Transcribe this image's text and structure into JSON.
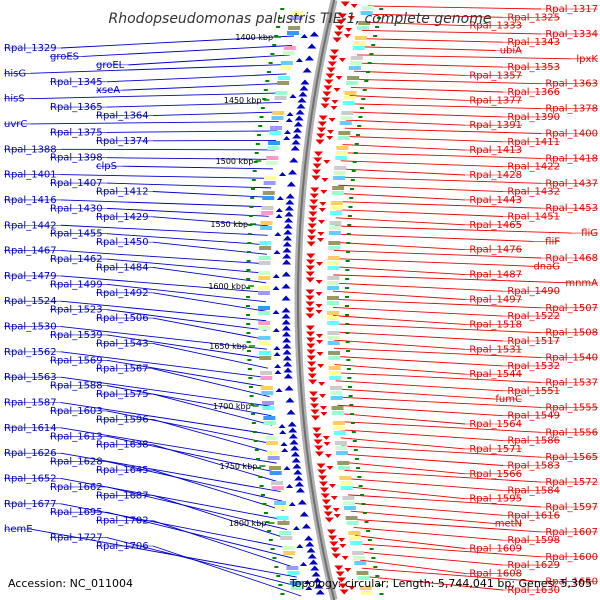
{
  "title": "Rhodopseudomonas palustris TIE-1, complete genome",
  "footer": {
    "accession": "Accession: NC_011004",
    "topology": "Topology: circular; Length: 5,744,041 bp; Genes: 5,305"
  },
  "colors": {
    "forward_genes": "#ee0000",
    "reverse_genes": "#0000cc",
    "backbone": "#888888",
    "tick": "#008800"
  },
  "scale_labels": [
    "1400 kbp",
    "1450 kbp",
    "1500 kbp",
    "1550 kbp",
    "1600 kbp",
    "1650 kbp",
    "1700 kbp",
    "1750 kbp",
    "1800 kbp"
  ],
  "left_labels": [
    "Rpal_1329",
    "groES",
    "groEL",
    "hisG",
    "Rpal_1345",
    "xseA",
    "hisS",
    "Rpal_1365",
    "Rpal_1364",
    "uvrC",
    "Rpal_1375",
    "Rpal_1374",
    "Rpal_1388",
    "Rpal_1398",
    "clpS",
    "Rpal_1401",
    "Rpal_1407",
    "Rpal_1412",
    "Rpal_1416",
    "Rpal_1430",
    "Rpal_1429",
    "Rpal_1442",
    "Rpal_1455",
    "Rpal_1450",
    "Rpal_1467",
    "Rpal_1462",
    "Rpal_1484",
    "Rpal_1479",
    "Rpal_1499",
    "Rpal_1492",
    "Rpal_1524",
    "Rpal_1523",
    "Rpal_1506",
    "Rpal_1530",
    "Rpal_1539",
    "Rpal_1543",
    "Rpal_1562",
    "Rpal_1569",
    "Rpal_1567",
    "Rpal_1563",
    "Rpal_1588",
    "Rpal_1575",
    "Rpal_1587",
    "Rpal_1603",
    "Rpal_1596",
    "Rpal_1614",
    "Rpal_1613",
    "Rpal_1638",
    "Rpal_1626",
    "Rpal_1628",
    "Rpal_1645",
    "Rpal_1652",
    "Rpal_1662",
    "Rpal_1687",
    "Rpal_1677",
    "Rpal_1695",
    "Rpal_1702",
    "hemE",
    "Rpal_1727",
    "Rpal_1706"
  ],
  "right_labels": [
    "Rpal_1317",
    "Rpal_1325",
    "Rpal_1333",
    "Rpal_1334",
    "Rpal_1343",
    "ubiA",
    "lpxK",
    "Rpal_1353",
    "Rpal_1357",
    "Rpal_1363",
    "Rpal_1366",
    "Rpal_1377",
    "Rpal_1378",
    "Rpal_1390",
    "Rpal_1391",
    "Rpal_1400",
    "Rpal_1411",
    "Rpal_1413",
    "Rpal_1418",
    "Rpal_1422",
    "Rpal_1428",
    "Rpal_1437",
    "Rpal_1432",
    "Rpal_1443",
    "Rpal_1453",
    "Rpal_1451",
    "Rpal_1465",
    "fliG",
    "fliF",
    "Rpal_1476",
    "Rpal_1468",
    "dnaG",
    "Rpal_1487",
    "mnmA",
    "Rpal_1490",
    "Rpal_1497",
    "Rpal_1507",
    "Rpal_1522",
    "Rpal_1518",
    "Rpal_1508",
    "Rpal_1517",
    "Rpal_1531",
    "Rpal_1540",
    "Rpal_1532",
    "Rpal_1544",
    "Rpal_1537",
    "Rpal_1551",
    "fumC",
    "Rpal_1555",
    "Rpal_1549",
    "Rpal_1564",
    "Rpal_1556",
    "Rpal_1586",
    "Rpal_1571",
    "Rpal_1565",
    "Rpal_1583",
    "Rpal_1566",
    "Rpal_1572",
    "Rpal_1584",
    "Rpal_1595",
    "Rpal_1597",
    "Rpal_1616",
    "metN",
    "Rpal_1607",
    "Rpal_1598",
    "Rpal_1609",
    "Rpal_1600",
    "Rpal_1629",
    "Rpal_1608",
    "Rpal_1650",
    "Rpal_1630"
  ]
}
